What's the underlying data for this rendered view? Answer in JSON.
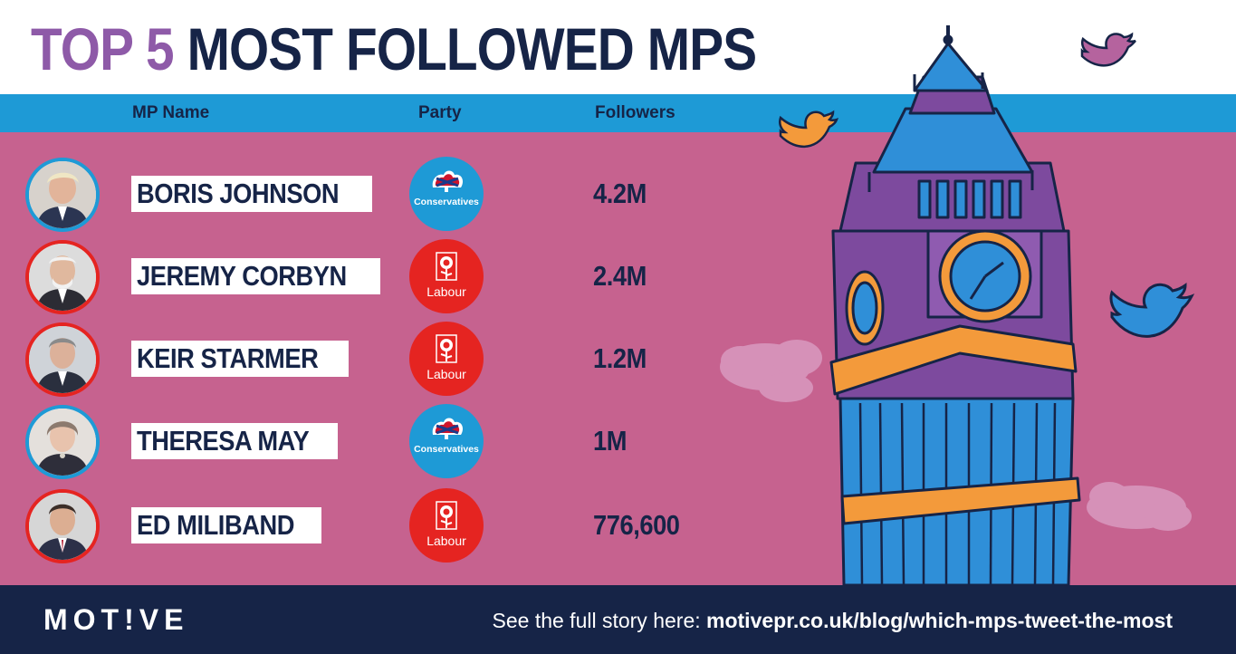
{
  "title": {
    "part1": "TOP 5",
    "part2": "MOST FOLLOWED MPS"
  },
  "columns": {
    "name": "MP Name",
    "party": "Party",
    "followers": "Followers"
  },
  "rows": [
    {
      "name": "BORIS JOHNSON",
      "party": "Conservatives",
      "followers": "4.2M"
    },
    {
      "name": "JEREMY CORBYN",
      "party": "Labour",
      "followers": "2.4M"
    },
    {
      "name": "KEIR STARMER",
      "party": "Labour",
      "followers": "1.2M"
    },
    {
      "name": "THERESA MAY",
      "party": "Conservatives",
      "followers": "1M"
    },
    {
      "name": "ED MILIBAND",
      "party": "Labour",
      "followers": "776,600"
    }
  ],
  "footer": {
    "brand": "MOT!VE",
    "cta_prefix": "See the full story here:",
    "cta_link": "motivepr.co.uk/blog/which-mps-tweet-the-most"
  },
  "chart_data": {
    "type": "table",
    "columns": [
      "MP Name",
      "Party",
      "Followers"
    ],
    "rows": [
      [
        "BORIS JOHNSON",
        "Conservatives",
        "4.2M"
      ],
      [
        "JEREMY CORBYN",
        "Labour",
        "2.4M"
      ],
      [
        "KEIR STARMER",
        "Labour",
        "1.2M"
      ],
      [
        "THERESA MAY",
        "Conservatives",
        "1M"
      ],
      [
        "ED MILIBAND",
        "Labour",
        "776,600"
      ]
    ],
    "values": [
      4200000,
      2400000,
      1200000,
      1000000,
      776600
    ]
  },
  "colors": {
    "background": "#c6628f",
    "header_bar": "#1e9ad6",
    "navy": "#162447",
    "title_accent": "#8e5aa8",
    "conservatives": "#1e9ad6",
    "labour": "#e52421",
    "tower_blue": "#2f8fd8",
    "tower_purple": "#7d4a9e",
    "tower_orange": "#f39a3b"
  },
  "icons": [
    "twitter-bird-icon",
    "cloud-icon",
    "big-ben-illustration",
    "union-jack-tree-icon",
    "red-rose-icon",
    "mp-portrait"
  ]
}
